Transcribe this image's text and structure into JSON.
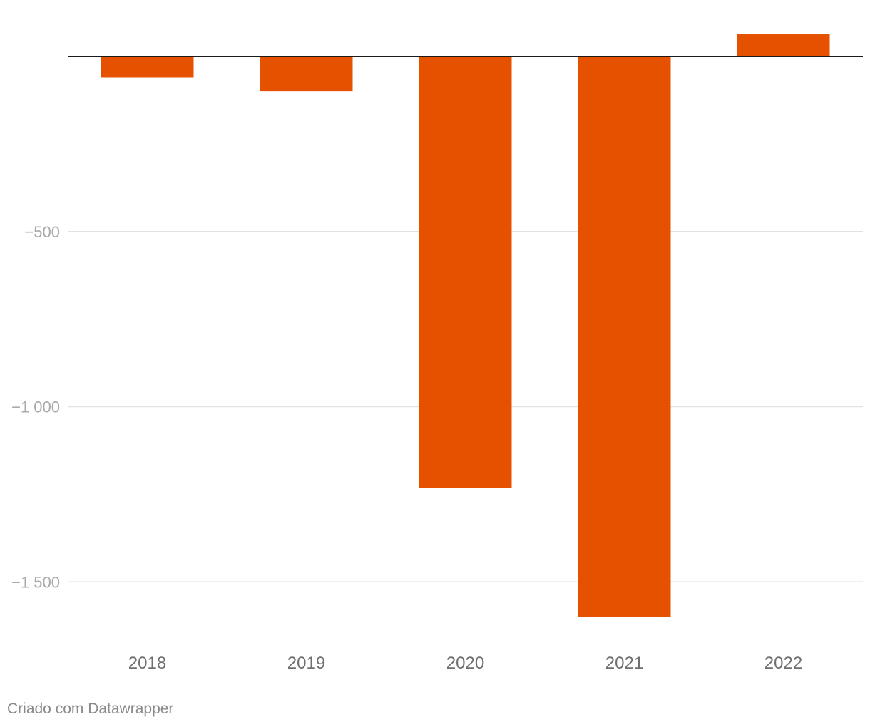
{
  "chart_data": {
    "type": "bar",
    "title": "",
    "xlabel": "",
    "ylabel": "",
    "categories": [
      "2018",
      "2019",
      "2020",
      "2021",
      "2022"
    ],
    "values": [
      -60,
      -100,
      -1232,
      -1600,
      63
    ],
    "ylim": [
      -1600,
      63
    ],
    "yticks": [
      -500,
      -1000,
      -1500
    ],
    "ytick_labels": [
      "−500",
      "−1 000",
      "−1 500"
    ],
    "bar_color": "#e65100",
    "grid": true
  },
  "footer": {
    "credit": "Criado com Datawrapper"
  }
}
